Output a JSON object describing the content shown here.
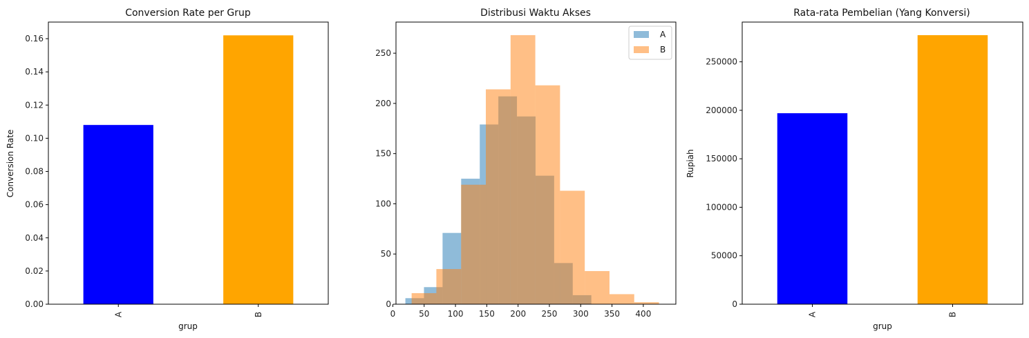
{
  "chart_data": [
    {
      "type": "bar",
      "title": "Conversion Rate per Grup",
      "xlabel": "grup",
      "ylabel": "Conversion Rate",
      "categories": [
        "A",
        "B"
      ],
      "values": [
        0.108,
        0.162
      ],
      "colors": [
        "#0000ff",
        "#ffa500"
      ],
      "ylim": [
        0,
        0.17
      ],
      "yticks": [
        0,
        0.02,
        0.04,
        0.06,
        0.08,
        0.1,
        0.12,
        0.14,
        0.16
      ],
      "ytick_labels": [
        "0.00",
        "0.02",
        "0.04",
        "0.06",
        "0.08",
        "0.10",
        "0.12",
        "0.14",
        "0.16"
      ]
    },
    {
      "type": "histogram",
      "title": "Distribusi Waktu Akses",
      "xlabel": "",
      "ylabel": "",
      "xlim": [
        5,
        452
      ],
      "ylim": [
        0,
        281
      ],
      "xticks": [
        0,
        50,
        100,
        150,
        200,
        250,
        300,
        350,
        400
      ],
      "yticks": [
        0,
        50,
        100,
        150,
        200,
        250
      ],
      "legend_position": "top-right",
      "series": [
        {
          "name": "A",
          "color": "#1f77b4",
          "opacity": 0.5,
          "bin_edges": [
            20,
            49.7,
            79.4,
            109.1,
            138.8,
            168.5,
            198.2,
            227.9,
            257.6,
            287.3,
            317
          ],
          "counts": [
            6,
            17,
            71,
            125,
            179,
            207,
            187,
            128,
            41,
            9
          ]
        },
        {
          "name": "B",
          "color": "#ff7f0e",
          "opacity": 0.5,
          "bin_edges": [
            30,
            69.5,
            109,
            148.5,
            188,
            227.5,
            267,
            306.5,
            346,
            385.5,
            425
          ],
          "counts": [
            11,
            35,
            119,
            214,
            268,
            218,
            113,
            33,
            10,
            2
          ]
        }
      ]
    },
    {
      "type": "bar",
      "title": "Rata-rata Pembelian (Yang Konversi)",
      "xlabel": "grup",
      "ylabel": "Rupiah",
      "categories": [
        "A",
        "B"
      ],
      "values": [
        197000,
        277500
      ],
      "colors": [
        "#0000ff",
        "#ffa500"
      ],
      "ylim": [
        0,
        291000
      ],
      "yticks": [
        0,
        50000,
        100000,
        150000,
        200000,
        250000
      ],
      "ytick_labels": [
        "0",
        "50000",
        "100000",
        "150000",
        "200000",
        "250000"
      ]
    }
  ]
}
